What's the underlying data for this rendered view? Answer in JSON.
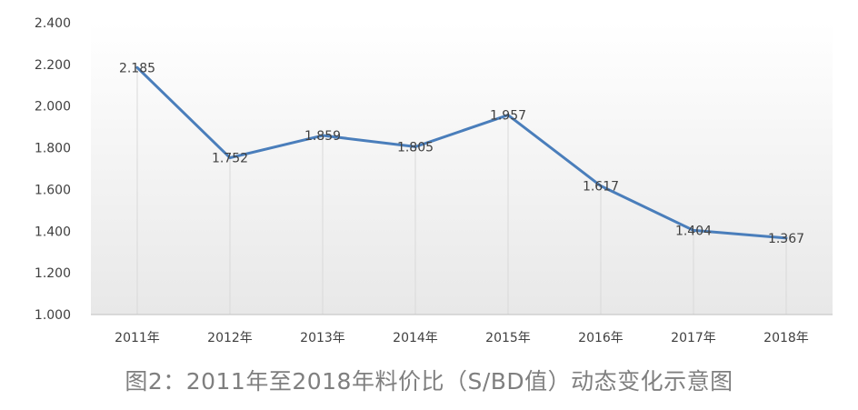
{
  "caption": "图2：2011年至2018年料价比（S/BD值）动态变化示意图",
  "colors": {
    "line": "#4a7ebb",
    "axis": "#bfbfbf",
    "drop_line": "#d9d9d9",
    "text": "#404040",
    "caption": "#7f7f7f",
    "plot_gradient_top": "#ffffff",
    "plot_gradient_bottom": "#e8e8e8"
  },
  "chart_data": {
    "type": "line",
    "title": "",
    "xlabel": "",
    "ylabel": "",
    "categories": [
      "2011年",
      "2012年",
      "2013年",
      "2014年",
      "2015年",
      "2016年",
      "2017年",
      "2018年"
    ],
    "series": [
      {
        "values": [
          2.185,
          1.752,
          1.859,
          1.805,
          1.957,
          1.617,
          1.404,
          1.367
        ],
        "labels": [
          "2.185",
          "1.752",
          "1.859",
          "1.805",
          "1.957",
          "1.617",
          "1.404",
          "1.367"
        ]
      }
    ],
    "ylim": [
      1.0,
      2.4
    ],
    "yticks": [
      "1.000",
      "1.200",
      "1.400",
      "1.600",
      "1.800",
      "2.000",
      "2.200",
      "2.400"
    ],
    "ytick_values": [
      1.0,
      1.2,
      1.4,
      1.6,
      1.8,
      2.0,
      2.2,
      2.4
    ],
    "grid": false,
    "drop_lines": true,
    "legend": "none"
  }
}
